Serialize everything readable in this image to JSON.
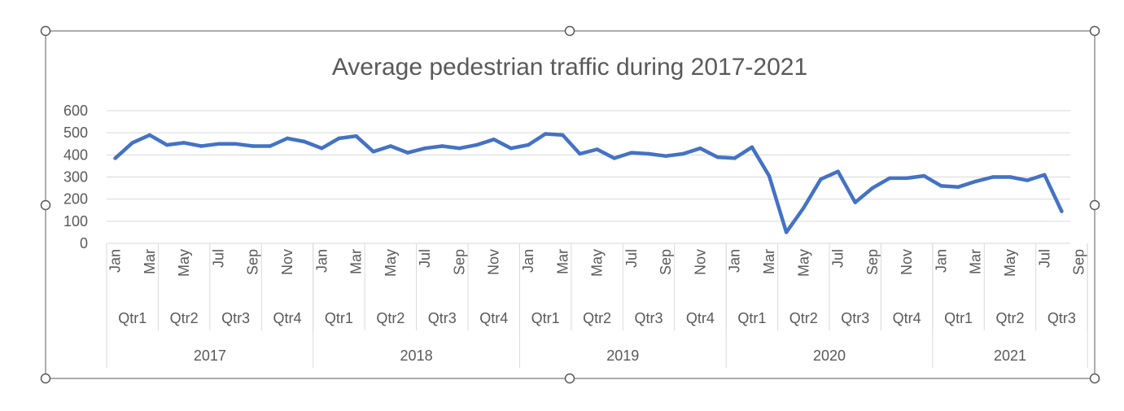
{
  "colors": {
    "line": "#4472C4",
    "grid": "#D9D9D9",
    "axis_text": "#595959",
    "frame": "#595959",
    "handle_fill": "#ffffff"
  },
  "chart_data": {
    "type": "line",
    "title": "Average pedestrian traffic during 2017-2021",
    "xlabel": "",
    "ylabel": "",
    "ylim": [
      0,
      600
    ],
    "yticks": [
      0,
      100,
      200,
      300,
      400,
      500,
      600
    ],
    "grid": true,
    "legend": "none",
    "x_month_labels": [
      "Jan",
      "Mar",
      "May",
      "Jul",
      "Sep",
      "Nov"
    ],
    "quarters": [
      "Qtr1",
      "Qtr2",
      "Qtr3",
      "Qtr4"
    ],
    "years": [
      {
        "year": "2017",
        "quarters": 4
      },
      {
        "year": "2018",
        "quarters": 4
      },
      {
        "year": "2019",
        "quarters": 4
      },
      {
        "year": "2020",
        "quarters": 4
      },
      {
        "year": "2021",
        "quarters": 3
      }
    ],
    "x": [
      "2017-01",
      "2017-02",
      "2017-03",
      "2017-04",
      "2017-05",
      "2017-06",
      "2017-07",
      "2017-08",
      "2017-09",
      "2017-10",
      "2017-11",
      "2017-12",
      "2018-01",
      "2018-02",
      "2018-03",
      "2018-04",
      "2018-05",
      "2018-06",
      "2018-07",
      "2018-08",
      "2018-09",
      "2018-10",
      "2018-11",
      "2018-12",
      "2019-01",
      "2019-02",
      "2019-03",
      "2019-04",
      "2019-05",
      "2019-06",
      "2019-07",
      "2019-08",
      "2019-09",
      "2019-10",
      "2019-11",
      "2019-12",
      "2020-01",
      "2020-02",
      "2020-03",
      "2020-04",
      "2020-05",
      "2020-06",
      "2020-07",
      "2020-08",
      "2020-09",
      "2020-10",
      "2020-11",
      "2020-12",
      "2021-01",
      "2021-02",
      "2021-03",
      "2021-04",
      "2021-05",
      "2021-06",
      "2021-07",
      "2021-08"
    ],
    "series": [
      {
        "values": [
          385,
          455,
          490,
          445,
          455,
          440,
          450,
          450,
          440,
          440,
          475,
          460,
          430,
          475,
          485,
          415,
          440,
          410,
          430,
          440,
          430,
          445,
          470,
          430,
          445,
          495,
          490,
          405,
          425,
          385,
          410,
          405,
          395,
          405,
          430,
          390,
          385,
          435,
          305,
          50,
          160,
          290,
          325,
          185,
          250,
          295,
          295,
          305,
          260,
          255,
          280,
          300,
          300,
          285,
          310,
          145
        ]
      }
    ]
  }
}
